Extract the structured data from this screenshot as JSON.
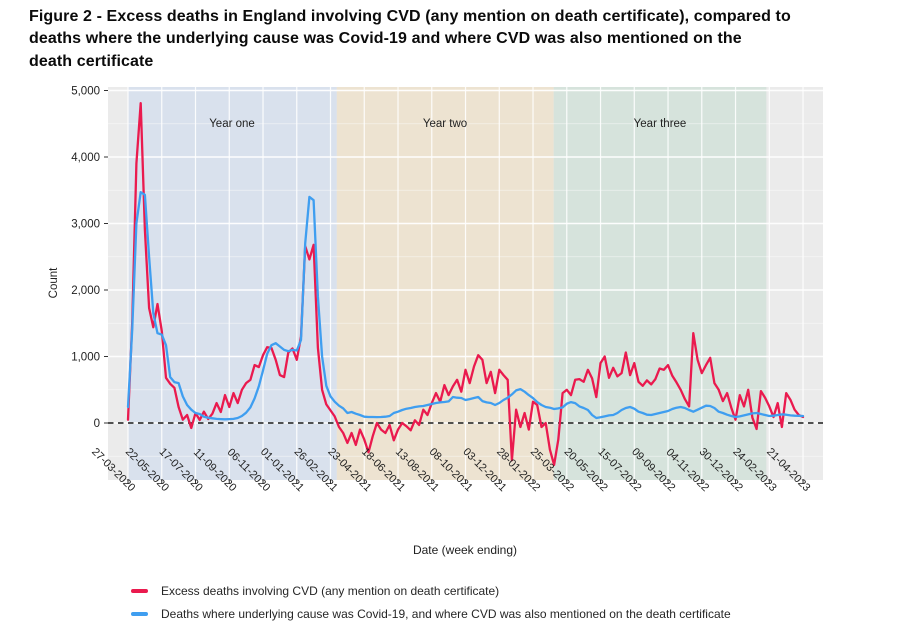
{
  "figure": {
    "title_line1": "Figure 2 - Excess deaths in England involving CVD (any mention on death certificate), compared to",
    "title_line2": "deaths where the underlying cause was Covid-19 and where CVD was also mentioned on the",
    "title_line3": "death certificate"
  },
  "legend": {
    "items": [
      {
        "label": "Excess deaths involving CVD (any mention on death certificate)",
        "color": "#EA1A4E"
      },
      {
        "label": "Deaths where underlying cause was Covid-19, and where CVD was also mentioned on the death certificate",
        "color": "#3F9EF0"
      }
    ]
  },
  "chart_data": {
    "type": "line",
    "title": "Figure 2 - Excess deaths in England involving CVD (any mention on death certificate), compared to deaths where the underlying cause was Covid-19 and where CVD was also mentioned on the death certificate",
    "xlabel": "Date (week ending)",
    "ylabel": "Count",
    "x_unit": "weeks since 27-03-2020",
    "x_tick_weeks": [
      0,
      8,
      16,
      24,
      32,
      40,
      48,
      56,
      64,
      72,
      80,
      88,
      96,
      104,
      112,
      120,
      128,
      136,
      144,
      152,
      160
    ],
    "x_tick_labels": [
      "27-03-2020",
      "22-05-2020",
      "17-07-2020",
      "11-09-2020",
      "06-11-2020",
      "01-01-2021",
      "26-02-2021",
      "23-04-2021",
      "18-06-2021",
      "13-08-2021",
      "08-10-2021",
      "03-12-2021",
      "28-01-2022",
      "25-03-2022",
      "20-05-2022",
      "15-07-2022",
      "09-09-2022",
      "04-11-2022",
      "30-12-2022",
      "24-02-2023",
      "21-04-2023"
    ],
    "y_ticks": [
      0,
      1000,
      2000,
      3000,
      4000,
      5000
    ],
    "y_tick_labels": [
      "0",
      "1,000",
      "2,000",
      "3,000",
      "4,000",
      "5,000"
    ],
    "y_minor_ticks": [
      -500,
      500,
      1500,
      2500,
      3500,
      4500
    ],
    "ylim": [
      -860,
      5050
    ],
    "grid": true,
    "legend_position": "bottom-left",
    "zero_line": {
      "value": 0,
      "style": "dashed",
      "color": "#1a1a1a"
    },
    "background_color": "#EBEBEB",
    "regions": [
      {
        "label": "Year one",
        "start_week": 0,
        "end_week": 49.5,
        "color": "#D9E1ED"
      },
      {
        "label": "Year two",
        "start_week": 49.5,
        "end_week": 100.9,
        "color": "#EDE3D1"
      },
      {
        "label": "Year three",
        "start_week": 100.9,
        "end_week": 151.3,
        "color": "#D6E3DC"
      }
    ],
    "series": [
      {
        "name": "Excess deaths involving CVD (any mention on death certificate)",
        "color": "#EA1A4E",
        "values": [
          50,
          1500,
          3900,
          4810,
          2900,
          1730,
          1440,
          1790,
          1380,
          680,
          590,
          530,
          240,
          50,
          120,
          -75,
          150,
          45,
          170,
          60,
          140,
          300,
          165,
          420,
          240,
          450,
          300,
          500,
          600,
          650,
          870,
          840,
          1020,
          1140,
          1130,
          950,
          720,
          690,
          1060,
          1120,
          950,
          1300,
          2660,
          2460,
          2680,
          1130,
          500,
          280,
          190,
          100,
          -60,
          -150,
          -300,
          -150,
          -330,
          -100,
          -250,
          -440,
          -200,
          0,
          -100,
          -150,
          -30,
          -260,
          -100,
          0,
          -50,
          -110,
          40,
          -30,
          200,
          120,
          300,
          450,
          320,
          570,
          420,
          550,
          650,
          470,
          800,
          600,
          850,
          1020,
          950,
          600,
          770,
          450,
          800,
          720,
          650,
          -560,
          200,
          -60,
          150,
          -100,
          320,
          270,
          -60,
          0,
          -400,
          -630,
          -250,
          450,
          500,
          420,
          650,
          660,
          620,
          800,
          670,
          390,
          900,
          1000,
          680,
          830,
          700,
          750,
          1060,
          720,
          900,
          620,
          560,
          640,
          580,
          660,
          820,
          800,
          870,
          710,
          610,
          500,
          360,
          250,
          1350,
          950,
          750,
          870,
          980,
          600,
          500,
          330,
          450,
          230,
          50,
          420,
          250,
          500,
          80,
          -90,
          480,
          380,
          250,
          90,
          300,
          -60,
          450,
          350,
          200,
          120,
          90
        ]
      },
      {
        "name": "Deaths where underlying cause was Covid-19, and where CVD was also mentioned on the death certificate",
        "color": "#3F9EF0",
        "values": [
          240,
          1400,
          3000,
          3470,
          3430,
          2500,
          1650,
          1350,
          1330,
          1170,
          690,
          615,
          600,
          400,
          270,
          200,
          150,
          135,
          95,
          80,
          70,
          62,
          58,
          55,
          58,
          62,
          75,
          105,
          155,
          235,
          370,
          550,
          790,
          1040,
          1170,
          1200,
          1150,
          1100,
          1080,
          1100,
          1090,
          1250,
          2700,
          3400,
          3350,
          1900,
          1000,
          560,
          400,
          320,
          260,
          220,
          150,
          165,
          140,
          120,
          95,
          90,
          90,
          88,
          90,
          95,
          105,
          150,
          170,
          195,
          215,
          226,
          241,
          250,
          256,
          271,
          285,
          301,
          310,
          316,
          325,
          391,
          380,
          376,
          346,
          360,
          376,
          391,
          330,
          310,
          301,
          271,
          301,
          346,
          380,
          430,
          490,
          510,
          470,
          420,
          375,
          315,
          270,
          240,
          230,
          210,
          220,
          235,
          290,
          315,
          300,
          250,
          225,
          195,
          120,
          75,
          85,
          100,
          115,
          120,
          150,
          195,
          225,
          240,
          215,
          170,
          150,
          125,
          120,
          135,
          150,
          165,
          180,
          210,
          230,
          240,
          225,
          195,
          170,
          200,
          230,
          260,
          255,
          225,
          170,
          150,
          125,
          105,
          90,
          100,
          115,
          130,
          145,
          150,
          135,
          120,
          105,
          110,
          120,
          130,
          125,
          115,
          110,
          108,
          105
        ]
      }
    ]
  }
}
